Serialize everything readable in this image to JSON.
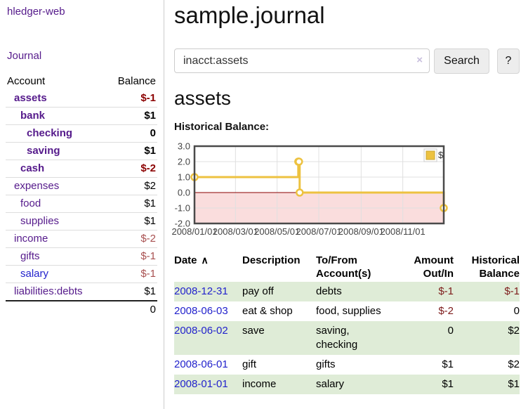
{
  "app": {
    "brand": "hledger-web",
    "nav_journal": "Journal"
  },
  "colors": {
    "link_visited": "#551a8b",
    "link_unvisited": "#2222cc",
    "negative_strong": "#8b0000",
    "negative_soft": "#a85050",
    "row_stripe_green": "#dfecd7",
    "series_yellow": "#edc240",
    "negative_region_pink": "#fadddd",
    "zero_line_red": "#8b0000"
  },
  "sidebar": {
    "header": {
      "account": "Account",
      "balance": "Balance"
    },
    "accounts": [
      {
        "name": "assets",
        "balance": "$-1",
        "level": 1,
        "bold": true,
        "neg": "strong"
      },
      {
        "name": "bank",
        "balance": "$1",
        "level": 2,
        "bold": true,
        "neg": "none"
      },
      {
        "name": "checking",
        "balance": "0",
        "level": 3,
        "bold": true,
        "neg": "none"
      },
      {
        "name": "saving",
        "balance": "$1",
        "level": 3,
        "bold": true,
        "neg": "none"
      },
      {
        "name": "cash",
        "balance": "$-2",
        "level": 2,
        "bold": true,
        "neg": "strong"
      },
      {
        "name": "expenses",
        "balance": "$2",
        "level": 1,
        "bold": false,
        "neg": "none"
      },
      {
        "name": "food",
        "balance": "$1",
        "level": 2,
        "bold": false,
        "neg": "none"
      },
      {
        "name": "supplies",
        "balance": "$1",
        "level": 2,
        "bold": false,
        "neg": "none"
      },
      {
        "name": "income",
        "balance": "$-2",
        "level": 1,
        "bold": false,
        "neg": "soft"
      },
      {
        "name": "gifts",
        "balance": "$-1",
        "level": 2,
        "bold": false,
        "neg": "soft"
      },
      {
        "name": "salary",
        "balance": "$-1",
        "level": 2,
        "bold": false,
        "neg": "soft",
        "link": "unvisited"
      },
      {
        "name": "liabilities:debts",
        "balance": "$1",
        "level": 1,
        "bold": false,
        "neg": "none"
      }
    ],
    "total": "0"
  },
  "main": {
    "title": "sample.journal",
    "search": {
      "value": "inacct:assets",
      "clear_icon": "×",
      "button": "Search",
      "help": "?"
    },
    "account_heading": "assets",
    "chart_heading": "Historical Balance:"
  },
  "chart_data": {
    "type": "line",
    "step": true,
    "title": "Historical Balance:",
    "legend": "$",
    "legend_position": "top-right",
    "grid": true,
    "xlim": [
      0,
      365
    ],
    "ylim": [
      -2,
      3
    ],
    "yticks": [
      3.0,
      2.0,
      1.0,
      0.0,
      -1.0,
      -2.0
    ],
    "xticks": [
      {
        "x": 0,
        "label": "2008/01/01"
      },
      {
        "x": 60,
        "label": "2008/03/01"
      },
      {
        "x": 121,
        "label": "2008/05/01"
      },
      {
        "x": 182,
        "label": "2008/07/01"
      },
      {
        "x": 244,
        "label": "2008/09/01"
      },
      {
        "x": 305,
        "label": "2008/11/01"
      }
    ],
    "series": [
      {
        "name": "$",
        "color": "#edc240",
        "points": [
          {
            "date": "2008-01-01",
            "x": 0,
            "y": 1
          },
          {
            "date": "2008-06-01",
            "x": 152,
            "y": 2
          },
          {
            "date": "2008-06-02",
            "x": 153,
            "y": 2
          },
          {
            "date": "2008-06-03",
            "x": 154,
            "y": 0
          },
          {
            "date": "2008-12-31",
            "x": 365,
            "y": -1
          }
        ]
      }
    ]
  },
  "register": {
    "headers": {
      "date": "Date",
      "sort_icon": "∧",
      "description": "Description",
      "accounts": "To/From Account(s)",
      "amount": "Amount Out/In",
      "balance": "Historical Balance"
    },
    "transactions": [
      {
        "date": "2008-12-31",
        "description": "pay off",
        "accounts": "debts",
        "amount": "$-1",
        "balance": "$-1"
      },
      {
        "date": "2008-06-03",
        "description": "eat & shop",
        "accounts": "food, supplies",
        "amount": "$-2",
        "balance": "0"
      },
      {
        "date": "2008-06-02",
        "description": "save",
        "accounts": "saving, checking",
        "amount": "0",
        "balance": "$2"
      },
      {
        "date": "2008-06-01",
        "description": "gift",
        "accounts": "gifts",
        "amount": "$1",
        "balance": "$2"
      },
      {
        "date": "2008-01-01",
        "description": "income",
        "accounts": "salary",
        "amount": "$1",
        "balance": "$1"
      }
    ]
  }
}
